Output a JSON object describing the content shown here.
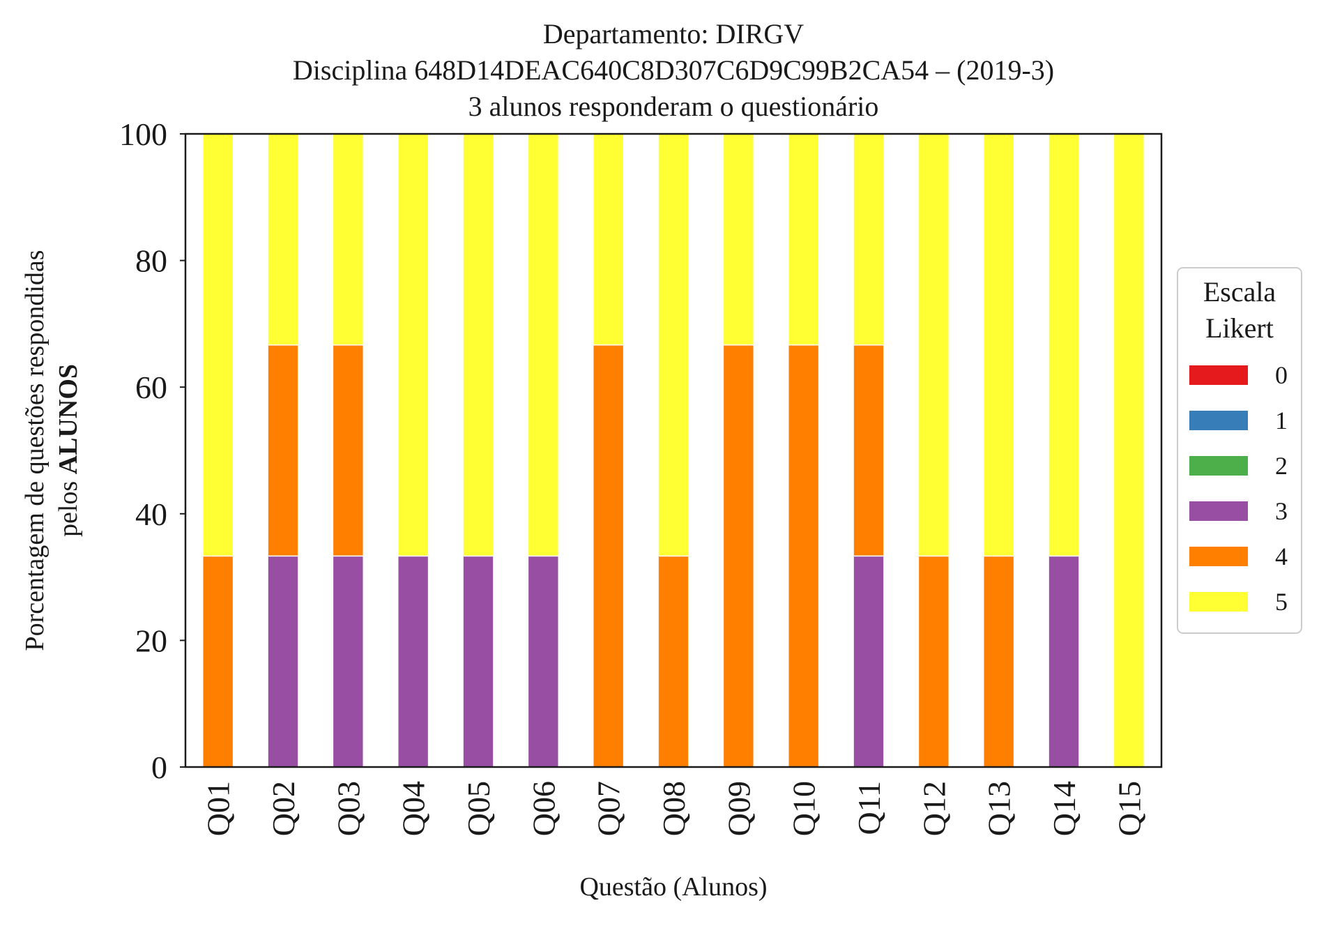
{
  "chart_data": {
    "type": "bar",
    "stacked": true,
    "title_lines": [
      "Departamento: DIRGV",
      "Disciplina 648D14DEAC640C8D307C6D9C99B2CA54 – (2019-3)",
      "3 alunos responderam o questionário"
    ],
    "ylabel_line1": "Porcentagem de questões respondidas",
    "ylabel_line2_prefix": "pelos ",
    "ylabel_line2_bold": "ALUNOS",
    "xlabel": "Questão (Alunos)",
    "ylim": [
      0,
      100
    ],
    "yticks": [
      "0",
      "20",
      "40",
      "60",
      "80",
      "100"
    ],
    "categories": [
      "Q01",
      "Q02",
      "Q03",
      "Q04",
      "Q05",
      "Q06",
      "Q07",
      "Q08",
      "Q09",
      "Q10",
      "Q11",
      "Q12",
      "Q13",
      "Q14",
      "Q15"
    ],
    "legend": {
      "title_lines": [
        "Escala",
        "Likert"
      ],
      "placement": "right"
    },
    "series": [
      {
        "name": "0",
        "color": "#e41a1c",
        "values": [
          0,
          0,
          0,
          0,
          0,
          0,
          0,
          0,
          0,
          0,
          0,
          0,
          0,
          0,
          0
        ]
      },
      {
        "name": "1",
        "color": "#377eb8",
        "values": [
          0,
          0,
          0,
          0,
          0,
          0,
          0,
          0,
          0,
          0,
          0,
          0,
          0,
          0,
          0
        ]
      },
      {
        "name": "2",
        "color": "#4daf4a",
        "values": [
          0,
          0,
          0,
          0,
          0,
          0,
          0,
          0,
          0,
          0,
          0,
          0,
          0,
          0,
          0
        ]
      },
      {
        "name": "3",
        "color": "#984ea3",
        "values": [
          0,
          33.33,
          33.33,
          33.33,
          33.33,
          33.33,
          0,
          0,
          0,
          0,
          33.33,
          0,
          0,
          33.33,
          0
        ]
      },
      {
        "name": "4",
        "color": "#ff7f00",
        "values": [
          33.33,
          33.33,
          33.33,
          0,
          0,
          0,
          66.67,
          33.33,
          66.67,
          66.67,
          33.33,
          33.33,
          33.33,
          0,
          0
        ]
      },
      {
        "name": "5",
        "color": "#ffff33",
        "values": [
          66.67,
          33.33,
          33.33,
          66.67,
          66.67,
          66.67,
          33.33,
          66.67,
          33.33,
          33.33,
          33.33,
          66.67,
          66.67,
          66.67,
          100
        ]
      }
    ]
  }
}
